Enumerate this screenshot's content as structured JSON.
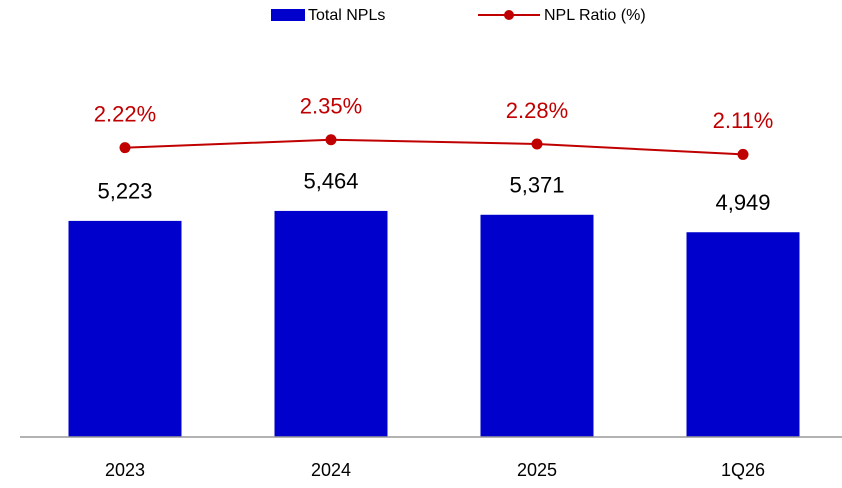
{
  "chart_data": {
    "type": "bar",
    "categories": [
      "2023",
      "2024",
      "2025",
      "1Q26"
    ],
    "series": [
      {
        "name": "Total NPLs",
        "type": "bar",
        "color": "#0000cc",
        "values": [
          5223,
          5464,
          5371,
          4949
        ],
        "value_labels": [
          "5,223",
          "5,464",
          "5,371",
          "4,949"
        ]
      },
      {
        "name": "NPL Ratio (%)",
        "type": "line",
        "axis": "y2",
        "color": "#c00000",
        "values": [
          2.22,
          2.35,
          2.28,
          2.11
        ],
        "value_labels": [
          "2.22%",
          "2.35%",
          "2.28%",
          "2.11%"
        ]
      }
    ],
    "ylim": [
      0,
      8000
    ],
    "y2lim": [
      -2.5,
      2.9
    ],
    "legend": "top"
  }
}
